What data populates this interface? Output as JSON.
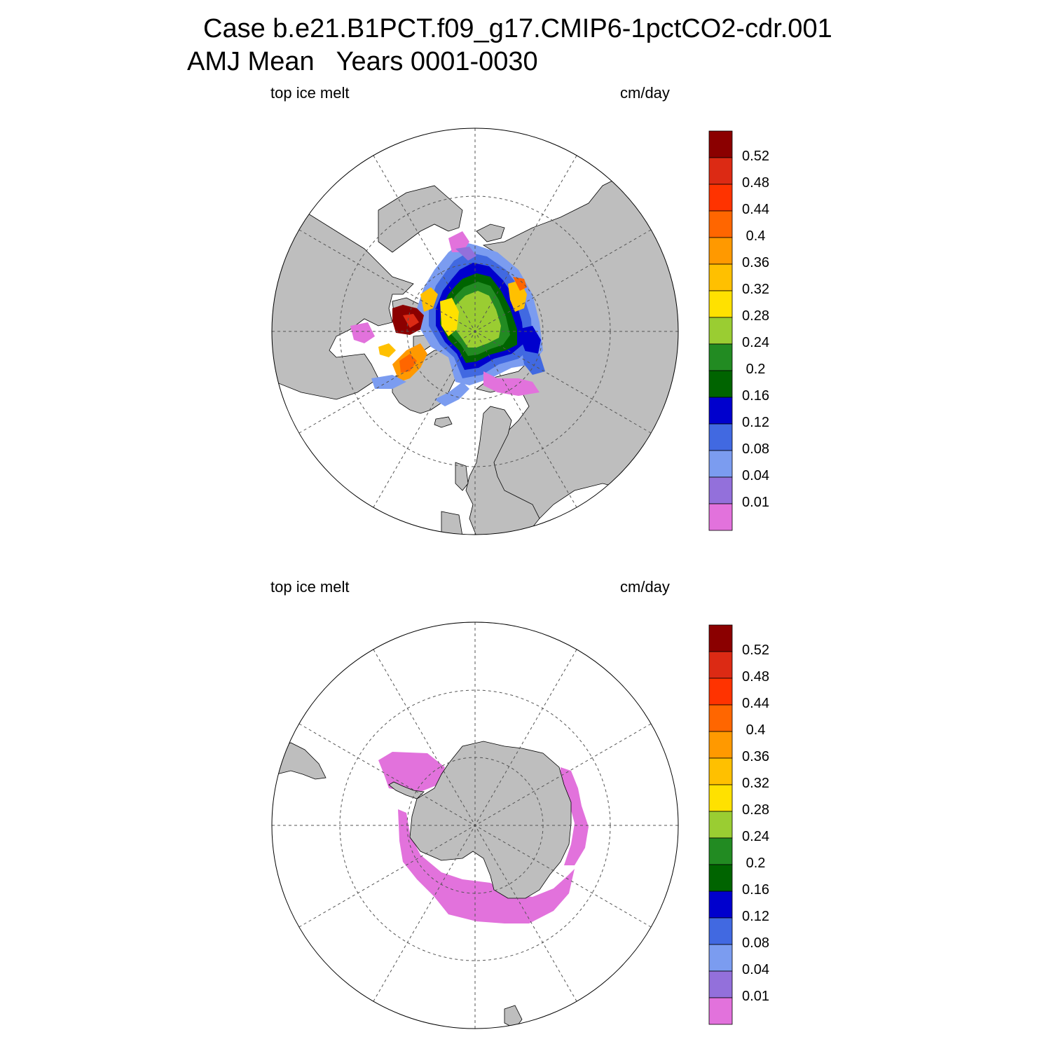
{
  "title_lines": [
    "Case b.e21.B1PCT.f09_g17.CMIP6-1pctCO2-cdr.001",
    "AMJ Mean   Years 0001-0030"
  ],
  "panels": [
    {
      "left_label": "top ice melt",
      "right_label": "cm/day",
      "hemisphere": "north"
    },
    {
      "left_label": "top ice melt",
      "right_label": "cm/day",
      "hemisphere": "south"
    }
  ],
  "colorbar": {
    "labels": [
      "0.52",
      "0.48",
      "0.44",
      "0.4",
      "0.36",
      "0.32",
      "0.28",
      "0.24",
      "0.2",
      "0.16",
      "0.12",
      "0.08",
      "0.04",
      "0.01"
    ],
    "colors": [
      "#8b0000",
      "#dc2a14",
      "#ff3300",
      "#ff6600",
      "#ff9900",
      "#ffc000",
      "#ffe100",
      "#9acd32",
      "#228b22",
      "#006400",
      "#0000cd",
      "#4169e1",
      "#7b9cf0",
      "#9370db",
      "#e272dc"
    ]
  },
  "map_colors": {
    "land": "#bebebe",
    "ocean": "#ffffff"
  }
}
